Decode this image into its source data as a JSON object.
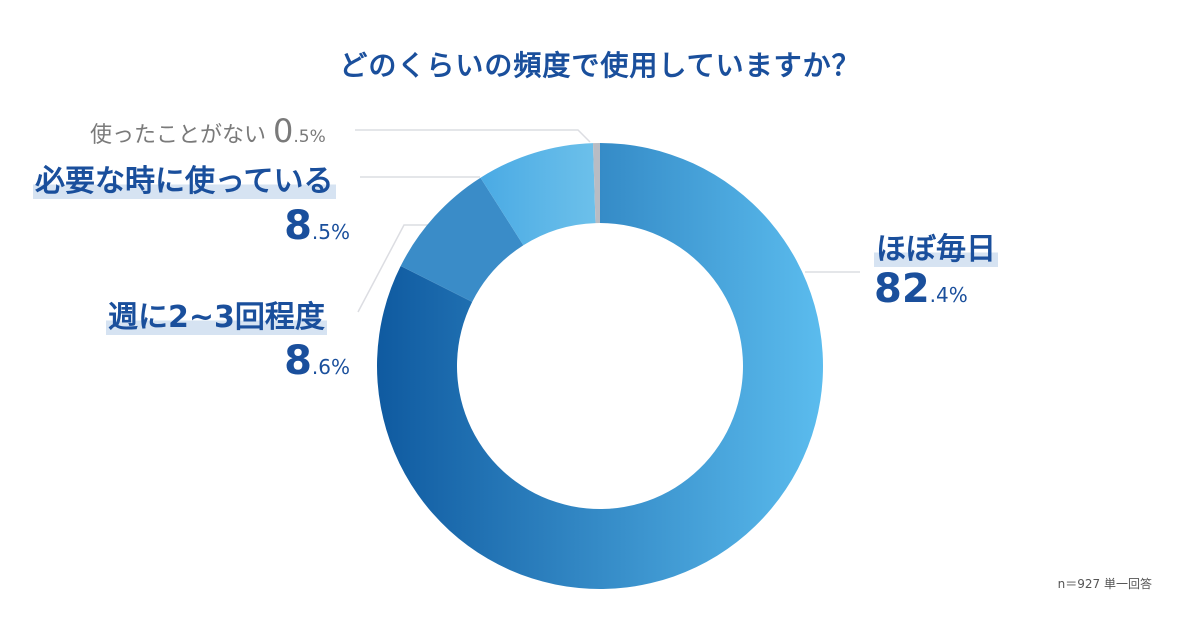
{
  "title": "どのくらいの頻度で使用していますか？",
  "labels": {
    "daily": {
      "text": "ほぼ毎日",
      "int": "82",
      "dec": ".4%"
    },
    "weekly": {
      "text": "週に2~3回程度",
      "int": "8",
      "dec": ".6%"
    },
    "as_needed": {
      "text": "必要な時に使っている",
      "int": "8",
      "dec": ".5%"
    },
    "never": {
      "text": "使ったことがない",
      "int": "0",
      "dec": ".5%"
    }
  },
  "note": "n＝927 単一回答",
  "colors": {
    "title": "#1a4f9c",
    "daily_gradient_start": "#0f5aa0",
    "daily_gradient_end": "#5bbcee",
    "weekly": "#3a8cc8",
    "as_needed": "#55b0e6",
    "never": "#b8bcc4",
    "highlight": "#d6e3f2"
  },
  "chart_data": {
    "type": "pie",
    "subtype": "donut",
    "title": "どのくらいの頻度で使用していますか？",
    "categories": [
      "ほぼ毎日",
      "週に2~3回程度",
      "必要な時に使っている",
      "使ったことがない"
    ],
    "values": [
      82.4,
      8.6,
      8.5,
      0.5
    ],
    "unit": "%",
    "start_angle": "top, clockwise",
    "annotation": "n＝927 単一回答"
  }
}
